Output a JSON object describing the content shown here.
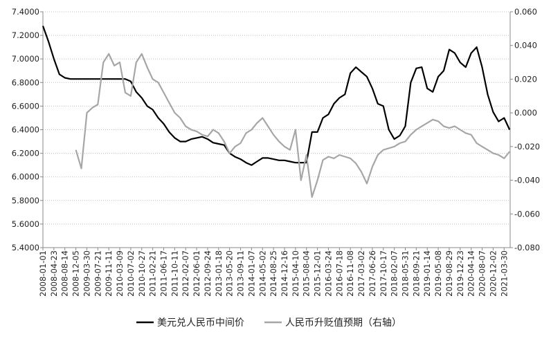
{
  "chart_data": {
    "type": "line",
    "categories": [
      "2008-01-01",
      null,
      "2008-04-23",
      null,
      "2008-08-14",
      null,
      "2008-12-05",
      null,
      "2009-03-30",
      null,
      "2009-07-21",
      null,
      "2009-11-11",
      null,
      "2010-03-09",
      null,
      "2010-07-02",
      null,
      "2010-10-27",
      null,
      "2011-02-21",
      null,
      "2011-06-17",
      null,
      "2011-10-11",
      null,
      "2012-02-07",
      null,
      "2012-06-01",
      null,
      "2012-09-24",
      null,
      "2013-01-18",
      null,
      "2013-05-20",
      null,
      "2013-09-11",
      null,
      "2014-01-07",
      null,
      "2014-05-02",
      null,
      "2014-08-25",
      null,
      "2014-12-16",
      null,
      "2015-04-10",
      null,
      "2015-08-04",
      null,
      "2015-12-01",
      null,
      "2016-03-24",
      null,
      "2016-07-18",
      null,
      "2016-11-08",
      null,
      "2017-03-02",
      null,
      "2017-06-26",
      null,
      "2017-10-17",
      null,
      "2018-02-07",
      null,
      "2018-05-31",
      null,
      "2018-09-21",
      null,
      "2019-01-14",
      null,
      "2019-05-08",
      null,
      "2019-08-29",
      null,
      "2019-12-23",
      null,
      "2020-04-14",
      null,
      "2020-08-07",
      null,
      "2020-12-02",
      null,
      "2021-03-30",
      null
    ],
    "series": [
      {
        "name": "美元兑人民币中间价",
        "color": "#000000",
        "axis": "y",
        "values": [
          7.28,
          7.15,
          7.0,
          6.87,
          6.84,
          6.83,
          6.83,
          6.83,
          6.83,
          6.83,
          6.83,
          6.83,
          6.83,
          6.83,
          6.83,
          6.83,
          6.81,
          6.72,
          6.67,
          6.6,
          6.57,
          6.5,
          6.45,
          6.38,
          6.33,
          6.3,
          6.3,
          6.32,
          6.33,
          6.34,
          6.32,
          6.29,
          6.28,
          6.27,
          6.2,
          6.17,
          6.15,
          6.12,
          6.1,
          6.13,
          6.16,
          6.16,
          6.15,
          6.14,
          6.14,
          6.13,
          6.12,
          6.12,
          6.12,
          6.38,
          6.38,
          6.5,
          6.53,
          6.62,
          6.67,
          6.7,
          6.88,
          6.93,
          6.89,
          6.85,
          6.75,
          6.62,
          6.6,
          6.4,
          6.32,
          6.35,
          6.43,
          6.8,
          6.92,
          6.93,
          6.75,
          6.72,
          6.85,
          6.9,
          7.08,
          7.05,
          6.97,
          6.93,
          7.05,
          7.1,
          6.93,
          6.7,
          6.55,
          6.47,
          6.5,
          6.4
        ]
      },
      {
        "name": "人民币升贬值预期（右轴）",
        "color": "#a6a6a6",
        "axis": "y2",
        "values": [
          null,
          null,
          null,
          null,
          null,
          null,
          -0.022,
          -0.033,
          0.0,
          0.003,
          0.005,
          0.03,
          0.035,
          0.028,
          0.03,
          0.012,
          0.01,
          0.03,
          0.035,
          0.027,
          0.02,
          0.018,
          0.012,
          0.006,
          0.0,
          -0.003,
          -0.008,
          -0.01,
          -0.011,
          -0.013,
          -0.014,
          -0.01,
          -0.012,
          -0.017,
          -0.024,
          -0.02,
          -0.018,
          -0.012,
          -0.01,
          -0.006,
          -0.003,
          -0.008,
          -0.013,
          -0.017,
          -0.02,
          -0.022,
          -0.01,
          -0.04,
          -0.025,
          -0.05,
          -0.04,
          -0.028,
          -0.026,
          -0.027,
          -0.025,
          -0.026,
          -0.027,
          -0.03,
          -0.035,
          -0.042,
          -0.032,
          -0.025,
          -0.022,
          -0.021,
          -0.02,
          -0.018,
          -0.017,
          -0.013,
          -0.01,
          -0.008,
          -0.006,
          -0.004,
          -0.005,
          -0.008,
          -0.009,
          -0.008,
          -0.01,
          -0.012,
          -0.013,
          -0.018,
          -0.02,
          -0.022,
          -0.024,
          -0.025,
          -0.027,
          -0.023
        ]
      }
    ],
    "ylim": [
      5.4,
      7.4
    ],
    "yticks": [
      {
        "value": 5.4,
        "label": "5.4000"
      },
      {
        "value": 5.6,
        "label": "5.6000"
      },
      {
        "value": 5.8,
        "label": "5.8000"
      },
      {
        "value": 6.0,
        "label": "6.0000"
      },
      {
        "value": 6.2,
        "label": "6.2000"
      },
      {
        "value": 6.4,
        "label": "6.4000"
      },
      {
        "value": 6.6,
        "label": "6.6000"
      },
      {
        "value": 6.8,
        "label": "6.8000"
      },
      {
        "value": 7.0,
        "label": "7.0000"
      },
      {
        "value": 7.2,
        "label": "7.2000"
      },
      {
        "value": 7.4,
        "label": "7.4000"
      }
    ],
    "y2lim": [
      -0.08,
      0.06
    ],
    "y2ticks": [
      {
        "value": -0.08,
        "label": "-0.080"
      },
      {
        "value": -0.06,
        "label": "-0.060"
      },
      {
        "value": -0.04,
        "label": "-0.040"
      },
      {
        "value": -0.02,
        "label": "-0.020"
      },
      {
        "value": 0,
        "label": "0.000"
      },
      {
        "value": 0.02,
        "label": "0.020"
      },
      {
        "value": 0.04,
        "label": "0.040"
      },
      {
        "value": 0.06,
        "label": "0.060"
      }
    ],
    "grid": true,
    "legend": "bottom"
  }
}
